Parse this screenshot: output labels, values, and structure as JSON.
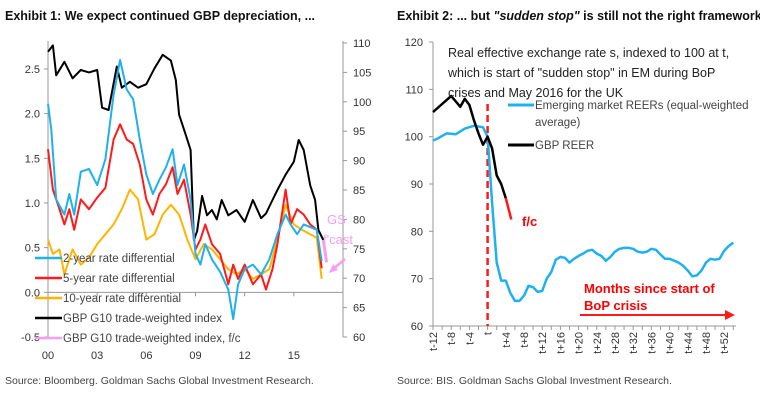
{
  "chart_data": [
    {
      "type": "line",
      "title": "Exhibit 1: We expect continued GBP depreciation, ...",
      "source": "Source: Bloomberg. Goldman Sachs Global Investment Research.",
      "x_ticks": [
        "00",
        "03",
        "06",
        "09",
        "12",
        "15"
      ],
      "x_tick_years": [
        2000,
        2003,
        2006,
        2009,
        2012,
        2015
      ],
      "xlim": [
        2000,
        2018
      ],
      "y_left": {
        "ylim": [
          -0.5,
          2.79
        ],
        "ticks": [
          "-0.5",
          "0.0",
          "0.5",
          "1.0",
          "1.5",
          "2.0",
          "2.5"
        ]
      },
      "y_right": {
        "ylim": [
          60,
          110
        ],
        "ticks": [
          "60",
          "65",
          "70",
          "75",
          "80",
          "85",
          "90",
          "95",
          "100",
          "105",
          "110"
        ]
      },
      "annotation": {
        "line1": "GS",
        "line2": "f'cast"
      },
      "legend_placement": "bottom-left",
      "series": [
        {
          "name": "2-year rate differential",
          "axis": "left",
          "color": "#1fb0f0",
          "x": [
            2000,
            2000.2,
            2000.5,
            2001,
            2001.3,
            2001.6,
            2002,
            2002.5,
            2003,
            2003.5,
            2004,
            2004.4,
            2004.8,
            2005.2,
            2005.6,
            2006,
            2006.4,
            2006.8,
            2007.2,
            2007.6,
            2007.9,
            2008.3,
            2008.7,
            2009,
            2009.3,
            2009.6,
            2010,
            2010.5,
            2011,
            2011.3,
            2011.6,
            2012,
            2012.5,
            2013,
            2013.5,
            2014,
            2014.5,
            2014.8,
            2015.2,
            2015.6,
            2016,
            2016.4,
            2016.7
          ],
          "y": [
            2.11,
            1.82,
            1.04,
            0.87,
            1.1,
            0.87,
            1.35,
            1.38,
            1.2,
            1.49,
            2.21,
            2.6,
            2.27,
            2.16,
            1.71,
            1.32,
            1.1,
            1.26,
            1.4,
            1.6,
            1.2,
            1.43,
            1.04,
            0.43,
            0.31,
            0.54,
            0.37,
            0.23,
            0.03,
            -0.3,
            0.09,
            0.26,
            0.31,
            0.2,
            0.37,
            0.65,
            0.87,
            0.76,
            0.65,
            0.76,
            0.73,
            0.7,
            0.35
          ]
        },
        {
          "name": "5-year rate differential",
          "axis": "left",
          "color": "#ff1a1a",
          "x": [
            2000,
            2000.3,
            2000.7,
            2001,
            2001.3,
            2001.6,
            2002,
            2002.5,
            2003,
            2003.5,
            2004,
            2004.4,
            2004.8,
            2005.2,
            2005.6,
            2006,
            2006.4,
            2006.8,
            2007.2,
            2007.6,
            2007.9,
            2008.3,
            2008.7,
            2009,
            2009.3,
            2009.6,
            2010,
            2010.5,
            2011,
            2011.3,
            2011.6,
            2012,
            2012.5,
            2013,
            2013.3,
            2013.7,
            2014,
            2014.5,
            2014.8,
            2015.2,
            2015.6,
            2016,
            2016.4,
            2016.7
          ],
          "y": [
            1.6,
            1.15,
            0.93,
            0.76,
            0.93,
            0.7,
            1.04,
            0.93,
            1.06,
            1.17,
            1.71,
            1.88,
            1.71,
            1.66,
            1.43,
            1.04,
            0.87,
            1.1,
            1.21,
            1.4,
            1.1,
            1.26,
            0.87,
            0.48,
            0.59,
            0.76,
            0.54,
            0.43,
            0.09,
            0.31,
            0.15,
            0.31,
            0.09,
            0.2,
            0.03,
            0.26,
            0.54,
            1.15,
            0.76,
            0.93,
            0.87,
            0.76,
            0.7,
            0.27
          ]
        },
        {
          "name": "10-year rate differential",
          "axis": "left",
          "color": "#ffb400",
          "x": [
            2000,
            2000.3,
            2000.7,
            2001,
            2001.5,
            2002,
            2002.5,
            2003,
            2003.5,
            2004,
            2004.5,
            2005,
            2005.5,
            2006,
            2006.5,
            2007,
            2007.5,
            2008,
            2008.5,
            2009,
            2009.5,
            2010,
            2010.5,
            2011,
            2011.5,
            2012,
            2012.5,
            2013,
            2013.5,
            2014,
            2014.5,
            2015,
            2015.5,
            2016,
            2016.4,
            2016.7
          ],
          "y": [
            0.59,
            0.43,
            0.48,
            0.2,
            0.48,
            0.31,
            0.39,
            0.54,
            0.65,
            0.76,
            0.93,
            1.15,
            1.04,
            0.59,
            0.65,
            0.87,
            0.98,
            0.87,
            0.59,
            0.37,
            0.54,
            0.48,
            0.37,
            0.26,
            0.2,
            0.26,
            0.15,
            0.2,
            0.26,
            0.59,
            0.98,
            0.76,
            0.7,
            0.65,
            0.61,
            0.15
          ]
        },
        {
          "name": "GBP G10 trade-weighted index",
          "axis": "right",
          "color": "#000000",
          "x": [
            2000,
            2000.3,
            2000.5,
            2001,
            2001.5,
            2002,
            2002.5,
            2003,
            2003.3,
            2003.7,
            2004.2,
            2004.5,
            2005,
            2005.5,
            2006,
            2006.5,
            2007,
            2007.5,
            2007.8,
            2008,
            2008.4,
            2008.7,
            2008.9,
            2009.1,
            2009.4,
            2009.7,
            2010,
            2010.3,
            2010.6,
            2011,
            2011.5,
            2012,
            2012.5,
            2013,
            2013.3,
            2013.7,
            2014,
            2014.5,
            2015,
            2015.3,
            2015.6,
            2016,
            2016.3,
            2016.5,
            2016.8
          ],
          "y": [
            108.5,
            109.6,
            104.5,
            106.8,
            104,
            105.4,
            105,
            105.4,
            99,
            98.6,
            106,
            102.4,
            103.4,
            102.4,
            103,
            105.7,
            108,
            107,
            103.7,
            97.8,
            94.4,
            91.8,
            76.5,
            78,
            84,
            80.7,
            81.6,
            80,
            83.3,
            80.7,
            81.6,
            79.6,
            83.3,
            80.2,
            81,
            83.3,
            85,
            87.6,
            89.8,
            93.5,
            91.8,
            85.8,
            83.3,
            78.2,
            76.5
          ]
        },
        {
          "name": "GBP G10 trade-weighted index, f/c",
          "axis": "right",
          "color": "#f79ef0",
          "x": [
            2016.8,
            2017.0
          ],
          "y": [
            76.5,
            72.7
          ]
        }
      ]
    },
    {
      "type": "line",
      "title_parts": [
        "Exhibit 2: ... but ",
        "\"sudden stop\"",
        " is still not the right framework."
      ],
      "source": "Source: BIS. Goldman Sachs Global Investment Research.",
      "annotation_lines": [
        "Real effective exchange rate s, indexed to 100 at t,",
        "which is start of \"sudden stop\" in EM during BoP",
        "crises and May 2016  for the UK"
      ],
      "fc_label": "f/c",
      "months_label": [
        "Months since start of",
        "BoP crisis"
      ],
      "ylim": [
        60,
        120
      ],
      "y_ticks": [
        "60",
        "70",
        "80",
        "90",
        "100",
        "110",
        "120"
      ],
      "xlim": [
        -12,
        54.6
      ],
      "x_ticks": [
        "t-12",
        "t-8",
        "t-4",
        "t",
        "t+4",
        "t+8",
        "t+12",
        "t+16",
        "t+20",
        "t+24",
        "t+28",
        "t+32",
        "t+36",
        "t+40",
        "t+44",
        "t+48",
        "t+52"
      ],
      "x_tick_values": [
        -12,
        -8,
        -4,
        0,
        4,
        8,
        12,
        16,
        20,
        24,
        28,
        32,
        36,
        40,
        44,
        48,
        52
      ],
      "marker_line_at": 0,
      "series": [
        {
          "name": "Emerging market REERs (equal-weighted average)",
          "legend_lines": [
            "Emerging market REERs (equal-weighted",
            "average)"
          ],
          "color": "#1fb0f0",
          "x": [
            -12,
            -11,
            -9,
            -7,
            -5,
            -3,
            -1,
            0,
            1,
            2,
            3,
            4,
            5,
            6,
            7,
            8,
            9,
            10,
            11,
            12,
            13,
            14,
            15,
            16,
            17,
            18,
            19,
            20,
            21,
            22,
            23,
            24,
            25,
            26,
            27,
            28,
            29,
            30,
            31,
            32,
            33,
            34,
            35,
            36,
            37,
            38,
            39,
            40,
            41,
            42,
            43,
            44,
            45,
            46,
            47,
            48,
            49,
            50,
            51,
            52,
            53,
            54
          ],
          "y": [
            99.2,
            99.6,
            100.7,
            100.5,
            101.7,
            102.3,
            102,
            100,
            86,
            73.4,
            69.6,
            69.6,
            67,
            65.3,
            65.3,
            66.4,
            68.5,
            68.2,
            67.2,
            67.4,
            70,
            71.4,
            74,
            74.6,
            74.4,
            73.4,
            74.2,
            74.8,
            75.3,
            75.9,
            76.1,
            75.3,
            74.8,
            73.8,
            74.6,
            75.7,
            76.3,
            76.5,
            76.5,
            76.3,
            75.7,
            75.5,
            75.7,
            76.3,
            76.1,
            75.1,
            74.2,
            74.2,
            73.8,
            73.4,
            72.7,
            71.7,
            70.5,
            70.7,
            71.7,
            73.4,
            74.2,
            74,
            74.2,
            75.9,
            76.9,
            77.6
          ]
        },
        {
          "name": "GBP REER",
          "color": "#000000",
          "x": [
            -12,
            -10,
            -8,
            -6,
            -5,
            -4,
            -3,
            -2,
            -1,
            0,
            1,
            2,
            3,
            4
          ],
          "y": [
            105.2,
            106.9,
            108.6,
            106.3,
            108,
            106.7,
            103.5,
            100.7,
            98.3,
            100,
            97.5,
            91.8,
            90,
            87
          ]
        },
        {
          "name": "GBP REER f/c",
          "color": "#ff1a1a",
          "x": [
            4,
            5.2
          ],
          "y": [
            87,
            82.5
          ]
        }
      ],
      "colors": {
        "marker_line": "#ff1a1a",
        "arrow": "#ff1a1a"
      }
    }
  ]
}
